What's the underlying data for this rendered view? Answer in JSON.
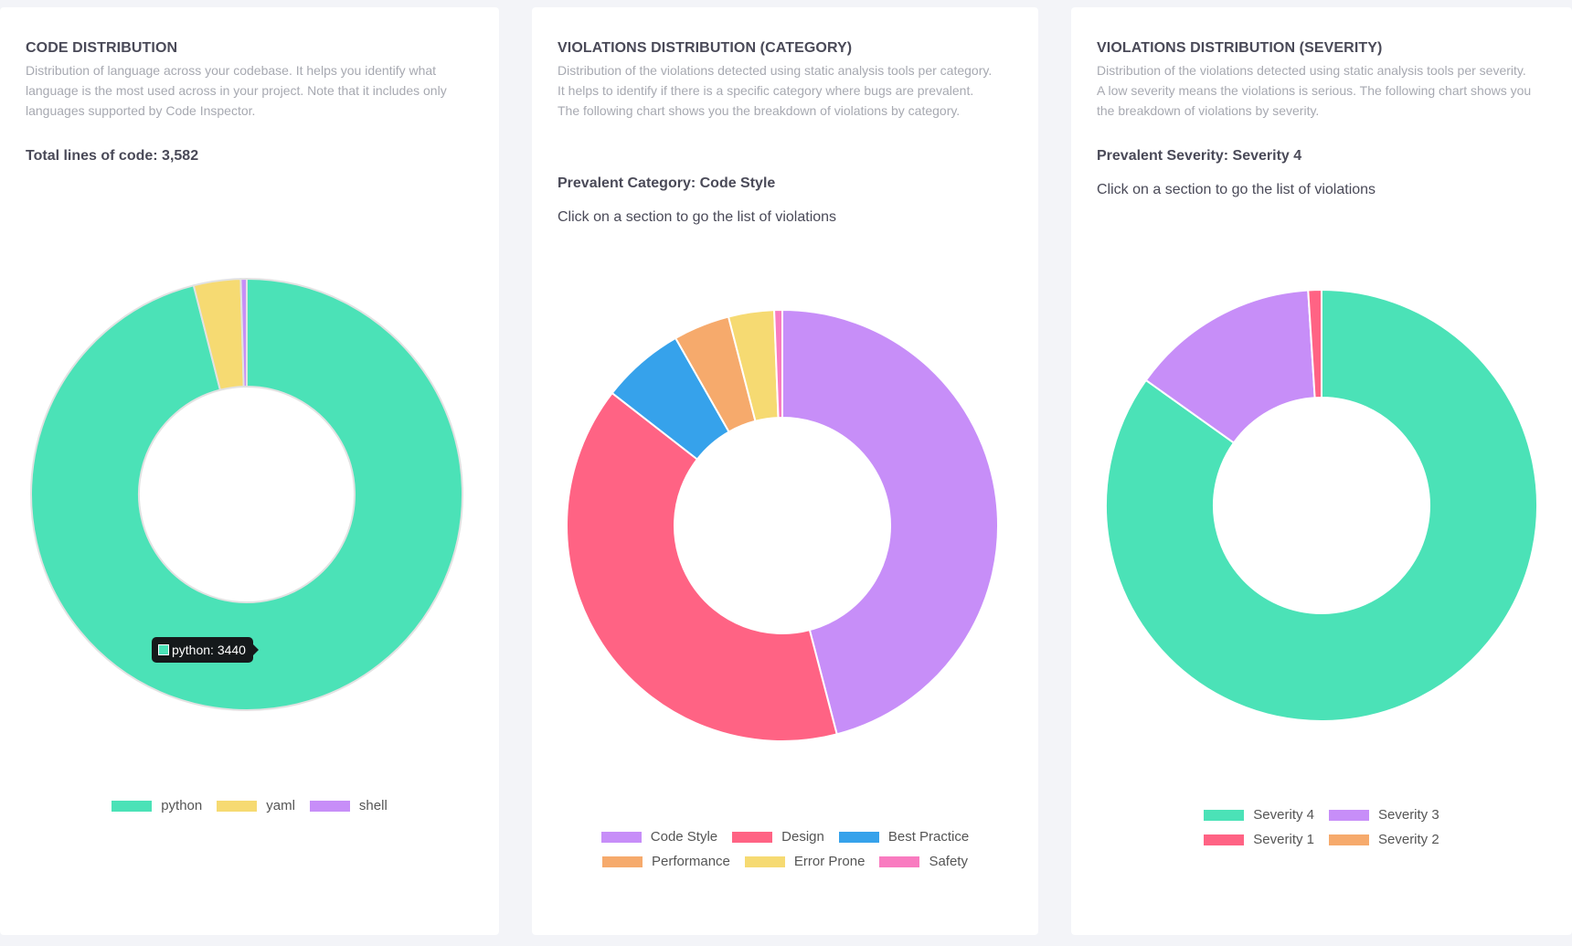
{
  "cards": [
    {
      "id": "card-code",
      "title": "CODE DISTRIBUTION",
      "description": "Distribution of language across your codebase. It helps you identify what language is the most used across in your project. Note that it includes only languages supported by Code Inspector.",
      "strong": "Total lines of code: 3,582",
      "hint": "",
      "tooltip": "python: 3440",
      "chart_data": {
        "type": "pie",
        "title": "CODE DISTRIBUTION",
        "categories": [
          "python",
          "yaml",
          "shell"
        ],
        "values": [
          3440,
          126,
          16
        ],
        "colors": [
          "#4be2b7",
          "#f6da72",
          "#c78ef8"
        ]
      }
    },
    {
      "id": "card-cat",
      "title": "VIOLATIONS DISTRIBUTION (CATEGORY)",
      "description": "Distribution of the violations detected using static analysis tools per category. It helps to identify if there is a specific category where bugs are prevalent. The following chart shows you the breakdown of violations by category.",
      "strong": "Prevalent Category: Code Style",
      "hint": "Click on a section to go the list of violations",
      "tooltip": "",
      "chart_data": {
        "type": "pie",
        "title": "VIOLATIONS DISTRIBUTION (CATEGORY)",
        "categories": [
          "Code Style",
          "Design",
          "Best Practice",
          "Performance",
          "Error Prone",
          "Safety"
        ],
        "values": [
          457,
          394,
          62,
          42,
          34,
          6
        ],
        "colors": [
          "#c78ef8",
          "#ff6384",
          "#36a2eb",
          "#f6aa6c",
          "#f6da72",
          "#f97bc0"
        ]
      }
    },
    {
      "id": "card-sev",
      "title": "VIOLATIONS DISTRIBUTION (SEVERITY)",
      "description": "Distribution of the violations detected using static analysis tools per severity. A low severity means the violations is serious. The following chart shows you the breakdown of violations by severity.",
      "strong": "Prevalent Severity: Severity 4",
      "hint": "Click on a section to go the list of violations",
      "tooltip": "",
      "chart_data": {
        "type": "pie",
        "title": "VIOLATIONS DISTRIBUTION (SEVERITY)",
        "categories": [
          "Severity 4",
          "Severity 3",
          "Severity 1",
          "Severity 2"
        ],
        "values": [
          852,
          142,
          10,
          0
        ],
        "colors": [
          "#4be2b7",
          "#c78ef8",
          "#ff6384",
          "#f6aa6c"
        ]
      }
    }
  ]
}
